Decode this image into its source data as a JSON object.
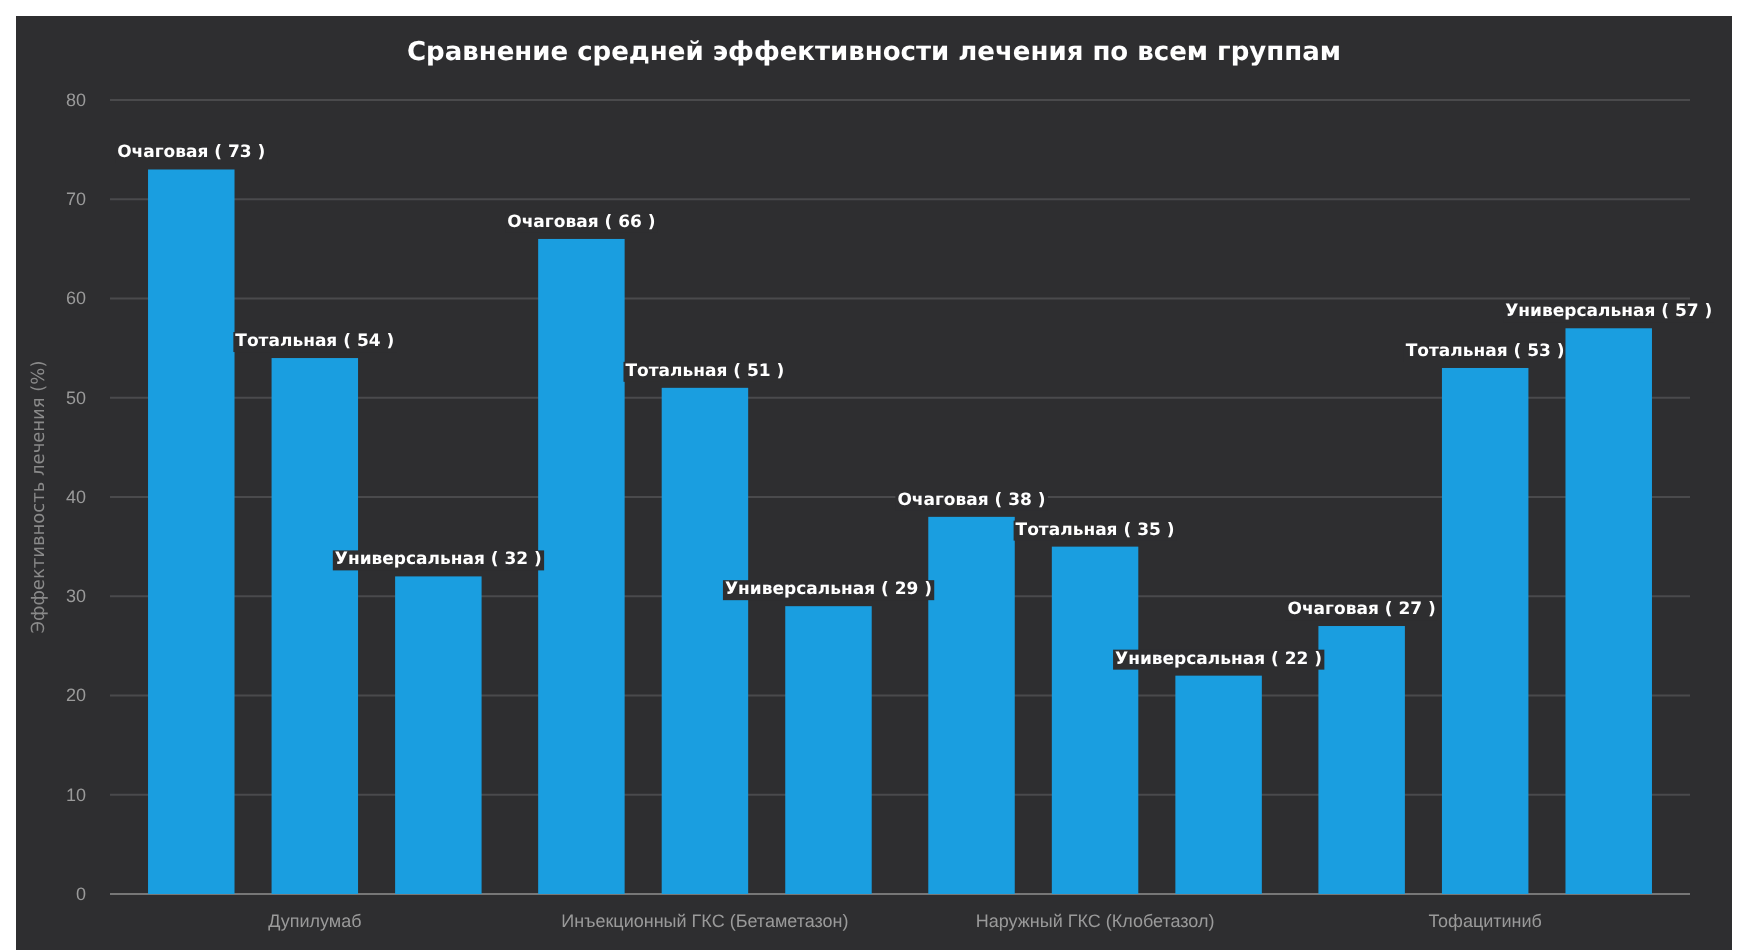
{
  "chart_data": {
    "type": "bar",
    "title": "Сравнение средней эффективности лечения по всем группам",
    "ylabel": "Эффективность лечения (%)",
    "categories": [
      "Дупилумаб",
      "Инъекционный ГКС (Бетаметазон)",
      "Наружный ГКС (Клобетазол)",
      "Тофацитиниб"
    ],
    "series": [
      {
        "color": "#1a9ee0",
        "values": [
          73,
          66,
          38,
          27
        ],
        "value_labels": [
          "Очаговая ( 73 )",
          "Очаговая ( 66 )",
          "Очаговая ( 38 )",
          "Очаговая ( 27 )"
        ]
      },
      {
        "color": "#1a9ee0",
        "values": [
          54,
          51,
          35,
          53
        ],
        "value_labels": [
          "Тотальная ( 54 )",
          "Тотальная ( 51 )",
          "Тотальная ( 35 )",
          "Тотальная ( 53 )"
        ]
      },
      {
        "color": "#1a9ee0",
        "values": [
          32,
          29,
          22,
          57
        ],
        "value_labels": [
          "Универсальная ( 32 )",
          "Универсальная ( 29 )",
          "Универсальная ( 22 )",
          "Универсальная ( 57 )"
        ]
      }
    ],
    "ylim": [
      0,
      80
    ],
    "yticks": [
      0,
      10,
      20,
      30,
      40,
      50,
      60,
      70,
      80
    ],
    "grid": "y"
  }
}
